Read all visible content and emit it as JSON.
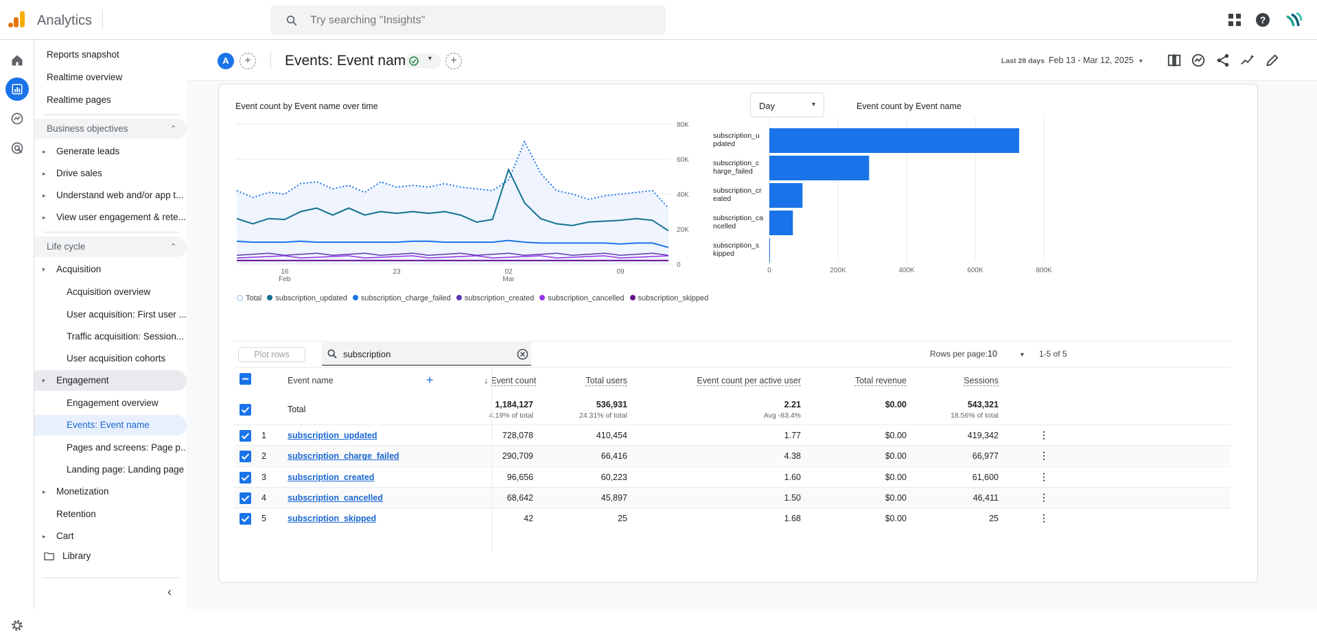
{
  "app": {
    "title": "Analytics"
  },
  "search": {
    "placeholder": "Try searching \"Insights\""
  },
  "nav": {
    "items": [
      {
        "label": "Reports snapshot"
      },
      {
        "label": "Realtime overview"
      },
      {
        "label": "Realtime pages"
      },
      {
        "label": "Business objectives"
      },
      {
        "label": "Generate leads"
      },
      {
        "label": "Drive sales"
      },
      {
        "label": "Understand web and/or app t..."
      },
      {
        "label": "View user engagement & rete..."
      },
      {
        "label": "Life cycle"
      },
      {
        "label": "Acquisition"
      },
      {
        "label": "Acquisition overview"
      },
      {
        "label": "User acquisition: First user ..."
      },
      {
        "label": "Traffic acquisition: Session..."
      },
      {
        "label": "User acquisition cohorts"
      },
      {
        "label": "Engagement"
      },
      {
        "label": "Engagement overview"
      },
      {
        "label": "Events: Event name"
      },
      {
        "label": "Pages and screens: Page p..."
      },
      {
        "label": "Landing page: Landing page"
      },
      {
        "label": "Monetization"
      },
      {
        "label": "Retention"
      },
      {
        "label": "Cart"
      },
      {
        "label": "Library"
      }
    ]
  },
  "header": {
    "avatar": "A",
    "title": "Events: Event name",
    "date_label": "Last 28 days",
    "date_range": "Feb 13 - Mar 12, 2025"
  },
  "line_chart": {
    "title": "Event count by Event name over time",
    "granularity": "Day",
    "y_ticks": [
      "80K",
      "60K",
      "40K",
      "20K",
      "0"
    ],
    "x_ticks": [
      {
        "day": "16",
        "month": "Feb"
      },
      {
        "day": "23",
        "month": ""
      },
      {
        "day": "02",
        "month": "Mar"
      },
      {
        "day": "09",
        "month": ""
      }
    ],
    "legend": [
      "Total",
      "subscription_updated",
      "subscription_charge_failed",
      "subscription_created",
      "subscription_cancelled",
      "subscription_skipped"
    ],
    "colors": {
      "total": "#1a73e8",
      "updated": "#12718e",
      "charge_failed": "#1a73e8",
      "created": "#5e35b1",
      "cancelled": "#9334e6",
      "skipped": "#6a0f8e"
    }
  },
  "chart_data": {
    "type": "bar",
    "title": "Event count by Event name",
    "categories": [
      "subscription_updated",
      "subscription_charge_failed",
      "subscription_created",
      "subscription_cancelled",
      "subscription_skipped"
    ],
    "category_lines": [
      [
        "subscription_u",
        "pdated"
      ],
      [
        "subscription_c",
        "harge_failed"
      ],
      [
        "subscription_cr",
        "eated"
      ],
      [
        "subscription_ca",
        "ncelled"
      ],
      [
        "subscription_s",
        "kipped"
      ]
    ],
    "values": [
      728078,
      290709,
      96656,
      68642,
      42
    ],
    "xlim": [
      0,
      800000
    ],
    "x_ticks": [
      "0",
      "200K",
      "400K",
      "600K",
      "800K"
    ],
    "color": "#1a73e8",
    "grid": true
  },
  "table": {
    "plot_rows": "Plot rows",
    "search_value": "subscription",
    "rows_per_page_label": "Rows per page:",
    "rows_per_page": "10",
    "pager": "1-5 of 5",
    "headers": {
      "event_name": "Event name",
      "event_count": "Event count",
      "total_users": "Total users",
      "per_user": "Event count per active user",
      "revenue": "Total revenue",
      "sessions": "Sessions"
    },
    "total": {
      "label": "Total",
      "event_count": "1,184,127",
      "event_count_sub": "4.19% of total",
      "total_users": "536,931",
      "total_users_sub": "24.31% of total",
      "per_user": "2.21",
      "per_user_sub": "Avg -83.4%",
      "revenue": "$0.00",
      "sessions": "543,321",
      "sessions_sub": "18.56% of total"
    },
    "rows": [
      {
        "idx": "1",
        "name": "subscription_updated",
        "event_count": "728,078",
        "total_users": "410,454",
        "per_user": "1.77",
        "revenue": "$0.00",
        "sessions": "419,342"
      },
      {
        "idx": "2",
        "name": "subscription_charge_failed",
        "event_count": "290,709",
        "total_users": "66,416",
        "per_user": "4.38",
        "revenue": "$0.00",
        "sessions": "66,977"
      },
      {
        "idx": "3",
        "name": "subscription_created",
        "event_count": "96,656",
        "total_users": "60,223",
        "per_user": "1.60",
        "revenue": "$0.00",
        "sessions": "61,600"
      },
      {
        "idx": "4",
        "name": "subscription_cancelled",
        "event_count": "68,642",
        "total_users": "45,897",
        "per_user": "1.50",
        "revenue": "$0.00",
        "sessions": "46,411"
      },
      {
        "idx": "5",
        "name": "subscription_skipped",
        "event_count": "42",
        "total_users": "25",
        "per_user": "1.68",
        "revenue": "$0.00",
        "sessions": "25"
      }
    ]
  }
}
